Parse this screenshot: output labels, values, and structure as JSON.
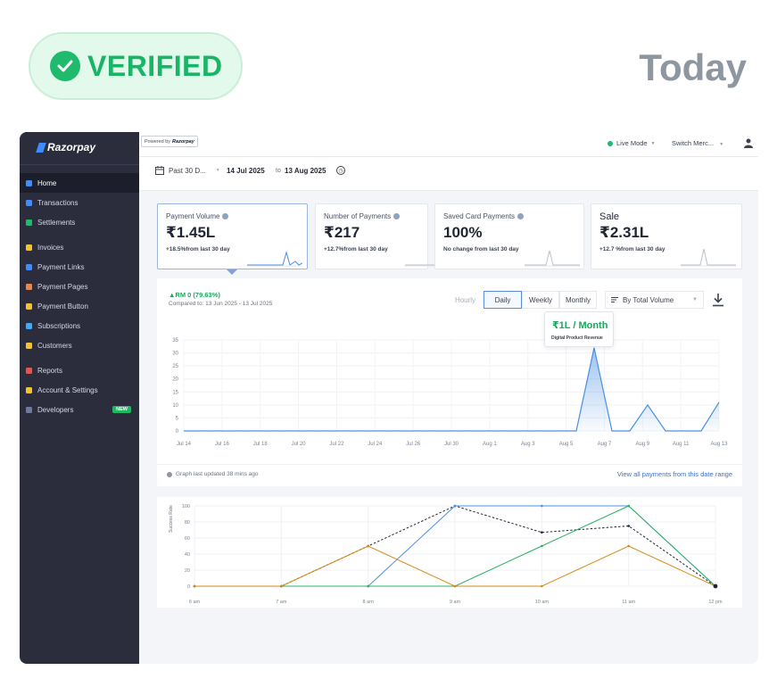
{
  "hero": {
    "badge": "VERIFIED",
    "date_label": "Today"
  },
  "colors": {
    "brand": "#3f8bff",
    "success": "#1fba6c",
    "accent_blue": "#4a90e2",
    "orange": "#d68a14",
    "green": "#2bb063",
    "sidebar": "#2b2d3d"
  },
  "app": {
    "logo": "Razorpay",
    "powered_by": "Powered by",
    "powered_brand": "Razorpay",
    "live_mode": "Live Mode",
    "switch_merchant": "Switch Merc...",
    "sidebar": [
      {
        "label": "Home",
        "icon": "home-icon",
        "color": "#3f8bff",
        "active": true
      },
      {
        "label": "Transactions",
        "icon": "transactions-icon",
        "color": "#3f8bff"
      },
      {
        "label": "Settlements",
        "icon": "settlements-icon",
        "color": "#1fba6c"
      },
      {
        "label": "Invoices",
        "icon": "invoice-icon",
        "color": "#f1c232"
      },
      {
        "label": "Payment Links",
        "icon": "link-icon",
        "color": "#3f8bff"
      },
      {
        "label": "Payment Pages",
        "icon": "page-icon",
        "color": "#e9874a"
      },
      {
        "label": "Payment Button",
        "icon": "button-icon",
        "color": "#f1c232"
      },
      {
        "label": "Subscriptions",
        "icon": "subscription-icon",
        "color": "#3fa8ff"
      },
      {
        "label": "Customers",
        "icon": "customers-icon",
        "color": "#f1c232"
      },
      {
        "label": "Reports",
        "icon": "reports-icon",
        "color": "#e9544a"
      },
      {
        "label": "Account & Settings",
        "icon": "settings-icon",
        "color": "#f1c232"
      },
      {
        "label": "Developers",
        "icon": "code-icon",
        "color": "#6d7a9c",
        "badge": "NEW"
      }
    ],
    "filter": {
      "range": "Past 30 D...",
      "from": "14 Jul 2025",
      "to_word": "to",
      "to": "13 Aug 2025"
    },
    "cards": [
      {
        "title": "Payment Volume",
        "value": "₹1.45L",
        "sub": "+18.5%from last 30 day",
        "info": true
      },
      {
        "title": "Number of Payments",
        "value": "₹217",
        "sub": "+12.7%from last 30 day",
        "info": true
      },
      {
        "title": "Saved Card Payments",
        "value": "100%",
        "sub": "No change from last 30 day",
        "info": true
      },
      {
        "title": "Sale",
        "value": "₹2.31L",
        "sub": "+12.7 %from last 30 day",
        "info": false
      }
    ],
    "main_chart": {
      "delta": "▲RM 0 (79.63%)",
      "compared": "Compared to:  13 Jun 2025 - 13 Jul 2025",
      "segments": [
        "Hourly",
        "Daily",
        "Weekly",
        "Monthly"
      ],
      "sort": "By Total Volume",
      "tooltip_value": "₹1L / Month",
      "tooltip_label": "Digital Product Revenue",
      "updated": "Graph last updated 38 mins ago",
      "view_all": "View all payments from this date range"
    },
    "second_chart": {
      "ylabel": "Success Rate"
    }
  },
  "chart_data": [
    {
      "type": "area",
      "title": "",
      "xlabel": "",
      "ylabel": "",
      "ylim": [
        0,
        35
      ],
      "yticks": [
        0,
        5,
        10,
        15,
        20,
        25,
        30,
        35
      ],
      "xtick_labels": [
        "Jul 14",
        "Jul 16",
        "Jul 18",
        "Jul 20",
        "Jul 22",
        "Jul 24",
        "Jul 26",
        "Jul 30",
        "Aug 1",
        "Aug 3",
        "Aug 5",
        "Aug 7",
        "Aug 9",
        "Aug 11",
        "Aug 13"
      ],
      "grid": true,
      "series": [
        {
          "values": [
            0,
            0,
            0,
            0,
            0,
            0,
            0,
            0,
            0,
            0,
            0,
            0,
            0,
            0,
            0,
            0,
            0,
            0,
            0,
            0,
            0,
            0,
            0,
            32,
            0,
            0,
            10,
            0,
            0,
            0,
            11
          ]
        }
      ]
    },
    {
      "type": "line",
      "ylabel": "Success Rate",
      "ylim": [
        0,
        100
      ],
      "yticks": [
        0,
        20,
        40,
        60,
        80,
        100
      ],
      "categories": [
        "6 am",
        "7 am",
        "8 am",
        "9 am",
        "10 am",
        "11 am",
        "12 pm"
      ],
      "grid": true,
      "series": [
        {
          "style": "dashed",
          "color": "#1f2533",
          "values": [
            0,
            0,
            50,
            100,
            67,
            75,
            0
          ]
        },
        {
          "color": "#4a90e2",
          "values": [
            0,
            0,
            0,
            100,
            100,
            100,
            0
          ]
        },
        {
          "color": "#2bb063",
          "values": [
            0,
            0,
            0,
            0,
            50,
            100,
            0
          ]
        },
        {
          "color": "#d68a14",
          "values": [
            0,
            0,
            50,
            0,
            0,
            50,
            0
          ]
        }
      ]
    }
  ]
}
